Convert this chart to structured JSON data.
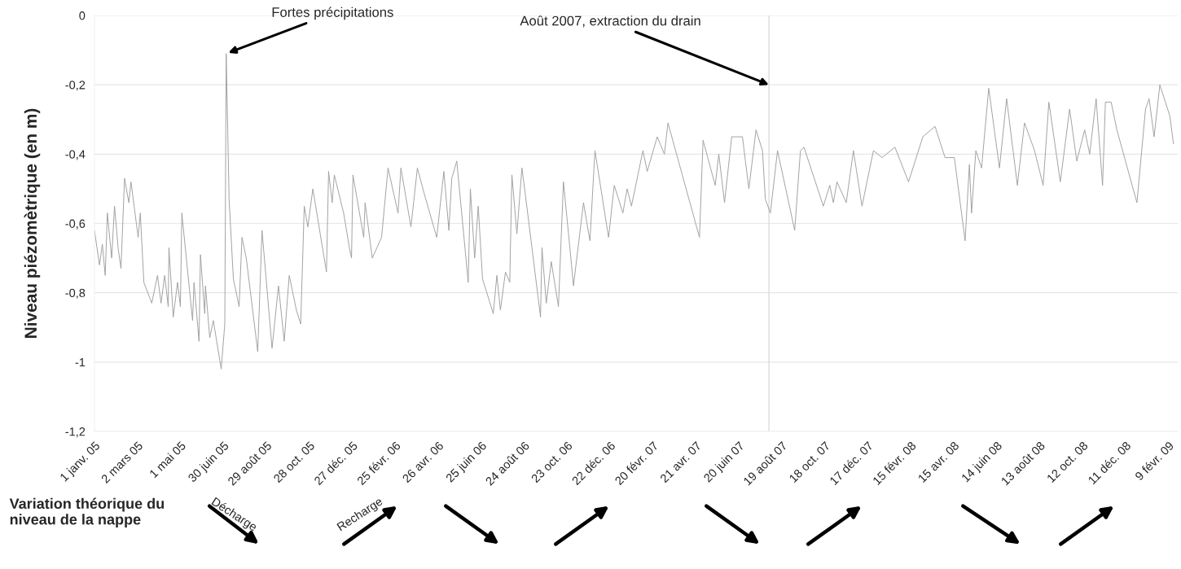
{
  "chart_data": {
    "type": "line",
    "ylabel": "Niveau piézomètrique (en m)",
    "x": [
      "2005-01-01",
      "2005-01-08",
      "2005-01-12",
      "2005-01-16",
      "2005-01-19",
      "2005-01-25",
      "2005-01-29",
      "2005-02-03",
      "2005-02-07",
      "2005-02-12",
      "2005-02-18",
      "2005-02-21",
      "2005-03-03",
      "2005-03-06",
      "2005-03-11",
      "2005-03-22",
      "2005-03-30",
      "2005-04-04",
      "2005-04-09",
      "2005-04-14",
      "2005-04-15",
      "2005-04-21",
      "2005-04-27",
      "2005-05-01",
      "2005-05-03",
      "2005-05-18",
      "2005-05-20",
      "2005-05-27",
      "2005-05-29",
      "2005-06-04",
      "2005-06-05",
      "2005-06-11",
      "2005-06-16",
      "2005-06-27",
      "2005-07-02",
      "2005-07-04",
      "2005-07-08",
      "2005-07-14",
      "2005-07-22",
      "2005-07-26",
      "2005-08-01",
      "2005-08-17",
      "2005-08-23",
      "2005-09-06",
      "2005-09-15",
      "2005-09-23",
      "2005-09-30",
      "2005-10-10",
      "2005-10-16",
      "2005-10-21",
      "2005-10-26",
      "2005-11-02",
      "2005-11-21",
      "2005-11-24",
      "2005-11-29",
      "2005-12-02",
      "2005-12-15",
      "2005-12-23",
      "2005-12-26",
      "2005-12-28",
      "2006-01-12",
      "2006-01-14",
      "2006-01-24",
      "2006-02-06",
      "2006-02-15",
      "2006-03-01",
      "2006-03-05",
      "2006-03-19",
      "2006-03-28",
      "2006-04-06",
      "2006-04-24",
      "2006-05-04",
      "2006-05-11",
      "2006-05-15",
      "2006-05-22",
      "2006-06-07",
      "2006-06-10",
      "2006-06-16",
      "2006-06-21",
      "2006-06-27",
      "2006-07-12",
      "2006-07-17",
      "2006-07-22",
      "2006-07-29",
      "2006-08-04",
      "2006-08-07",
      "2006-08-14",
      "2006-08-21",
      "2006-08-26",
      "2006-09-16",
      "2006-09-18",
      "2006-09-24",
      "2006-10-01",
      "2006-10-11",
      "2006-10-18",
      "2006-10-27",
      "2006-11-01",
      "2006-11-15",
      "2006-11-24",
      "2006-12-01",
      "2006-12-20",
      "2006-12-28",
      "2007-01-09",
      "2007-01-15",
      "2007-01-21",
      "2007-02-06",
      "2007-02-12",
      "2007-02-26",
      "2007-03-08",
      "2007-03-13",
      "2007-04-26",
      "2007-05-01",
      "2007-05-18",
      "2007-05-23",
      "2007-05-31",
      "2007-06-10",
      "2007-06-25",
      "2007-07-04",
      "2007-07-14",
      "2007-07-23",
      "2007-07-27",
      "2007-08-03",
      "2007-08-13",
      "2007-09-06",
      "2007-09-14",
      "2007-09-19",
      "2007-10-16",
      "2007-10-25",
      "2007-10-30",
      "2007-11-04",
      "2007-11-17",
      "2007-11-27",
      "2007-12-09",
      "2007-12-25",
      "2008-01-06",
      "2008-01-24",
      "2008-02-12",
      "2008-03-03",
      "2008-03-20",
      "2008-04-03",
      "2008-04-16",
      "2008-05-01",
      "2008-05-07",
      "2008-05-10",
      "2008-05-16",
      "2008-05-24",
      "2008-06-03",
      "2008-06-18",
      "2008-06-28",
      "2008-07-13",
      "2008-07-23",
      "2008-08-06",
      "2008-08-18",
      "2008-08-26",
      "2008-09-11",
      "2008-09-24",
      "2008-10-04",
      "2008-10-15",
      "2008-10-22",
      "2008-10-31",
      "2008-11-09",
      "2008-11-13",
      "2008-11-21",
      "2008-11-29",
      "2008-12-27",
      "2009-01-08",
      "2009-01-13",
      "2009-01-20",
      "2009-01-28",
      "2009-02-11",
      "2009-02-16"
    ],
    "series": [
      {
        "color": "#a0a0a0",
        "values": [
          -0.62,
          -0.72,
          -0.66,
          -0.75,
          -0.57,
          -0.7,
          -0.55,
          -0.67,
          -0.73,
          -0.47,
          -0.54,
          -0.48,
          -0.64,
          -0.57,
          -0.77,
          -0.83,
          -0.75,
          -0.83,
          -0.75,
          -0.84,
          -0.67,
          -0.87,
          -0.77,
          -0.84,
          -0.57,
          -0.88,
          -0.77,
          -0.94,
          -0.69,
          -0.86,
          -0.78,
          -0.93,
          -0.88,
          -1.02,
          -0.89,
          -0.11,
          -0.53,
          -0.76,
          -0.84,
          -0.64,
          -0.7,
          -0.97,
          -0.62,
          -0.96,
          -0.78,
          -0.94,
          -0.75,
          -0.85,
          -0.89,
          -0.55,
          -0.61,
          -0.5,
          -0.74,
          -0.45,
          -0.54,
          -0.46,
          -0.57,
          -0.67,
          -0.7,
          -0.46,
          -0.64,
          -0.54,
          -0.7,
          -0.64,
          -0.44,
          -0.57,
          -0.44,
          -0.61,
          -0.44,
          -0.51,
          -0.64,
          -0.45,
          -0.62,
          -0.47,
          -0.42,
          -0.77,
          -0.5,
          -0.7,
          -0.55,
          -0.76,
          -0.86,
          -0.75,
          -0.85,
          -0.74,
          -0.77,
          -0.46,
          -0.63,
          -0.44,
          -0.52,
          -0.87,
          -0.67,
          -0.83,
          -0.71,
          -0.84,
          -0.48,
          -0.67,
          -0.78,
          -0.54,
          -0.65,
          -0.39,
          -0.64,
          -0.49,
          -0.57,
          -0.5,
          -0.55,
          -0.39,
          -0.45,
          -0.35,
          -0.4,
          -0.31,
          -0.64,
          -0.36,
          -0.49,
          -0.4,
          -0.54,
          -0.35,
          -0.35,
          -0.5,
          -0.33,
          -0.39,
          -0.53,
          -0.57,
          -0.39,
          -0.62,
          -0.39,
          -0.38,
          -0.55,
          -0.49,
          -0.54,
          -0.48,
          -0.54,
          -0.39,
          -0.55,
          -0.39,
          -0.41,
          -0.38,
          -0.48,
          -0.35,
          -0.32,
          -0.41,
          -0.41,
          -0.65,
          -0.43,
          -0.57,
          -0.39,
          -0.44,
          -0.21,
          -0.44,
          -0.24,
          -0.49,
          -0.31,
          -0.39,
          -0.49,
          -0.25,
          -0.48,
          -0.27,
          -0.42,
          -0.33,
          -0.4,
          -0.24,
          -0.49,
          -0.25,
          -0.25,
          -0.33,
          -0.54,
          -0.27,
          -0.24,
          -0.35,
          -0.2,
          -0.29,
          -0.37
        ]
      }
    ],
    "xlim": [
      "2005-01-01",
      "2009-02-22"
    ],
    "xticks": [
      {
        "value": "2005-01-01",
        "label": "1 janv. 05"
      },
      {
        "value": "2005-03-02",
        "label": "2 mars 05"
      },
      {
        "value": "2005-05-01",
        "label": "1 mai 05"
      },
      {
        "value": "2005-06-30",
        "label": "30 juin 05"
      },
      {
        "value": "2005-08-29",
        "label": "29 août 05"
      },
      {
        "value": "2005-10-28",
        "label": "28 oct. 05"
      },
      {
        "value": "2005-12-27",
        "label": "27 déc. 05"
      },
      {
        "value": "2006-02-25",
        "label": "25 févr. 06"
      },
      {
        "value": "2006-04-26",
        "label": "26 avr. 06"
      },
      {
        "value": "2006-06-25",
        "label": "25 juin 06"
      },
      {
        "value": "2006-08-24",
        "label": "24 août 06"
      },
      {
        "value": "2006-10-23",
        "label": "23 oct. 06"
      },
      {
        "value": "2006-12-22",
        "label": "22 déc. 06"
      },
      {
        "value": "2007-02-20",
        "label": "20 févr. 07"
      },
      {
        "value": "2007-04-21",
        "label": "21 avr. 07"
      },
      {
        "value": "2007-06-20",
        "label": "20 juin 07"
      },
      {
        "value": "2007-08-19",
        "label": "19 août 07"
      },
      {
        "value": "2007-10-18",
        "label": "18 oct. 07"
      },
      {
        "value": "2007-12-17",
        "label": "17 déc. 07"
      },
      {
        "value": "2008-02-15",
        "label": "15 févr. 08"
      },
      {
        "value": "2008-04-15",
        "label": "15 avr. 08"
      },
      {
        "value": "2008-06-14",
        "label": "14 juin 08"
      },
      {
        "value": "2008-08-13",
        "label": "13 août 08"
      },
      {
        "value": "2008-10-12",
        "label": "12 oct. 08"
      },
      {
        "value": "2008-12-11",
        "label": "11 déc. 08"
      },
      {
        "value": "2009-02-09",
        "label": "9 févr. 09"
      }
    ],
    "ylim": [
      -1.2,
      0
    ],
    "yticks": [
      {
        "value": -1.2,
        "label": "-1,2"
      },
      {
        "value": -1,
        "label": "-1"
      },
      {
        "value": -0.8,
        "label": "-0,8"
      },
      {
        "value": -0.6,
        "label": "-0,6"
      },
      {
        "value": -0.4,
        "label": "-0,4"
      },
      {
        "value": -0.2,
        "label": "-0,2"
      },
      0
    ],
    "grid": "y",
    "marker": "none",
    "line_style": "solid",
    "ref_lines": [
      {
        "axis": "x",
        "value": "2007-08-01",
        "label": "Août 2007, extraction du drain",
        "color": "#d8d8d8"
      }
    ],
    "annotations": [
      {
        "text": "Fortes précipitations",
        "x": "2005-07-04",
        "y": -0.11
      },
      "Variation théorique du niveau de la nappe",
      "Décharge",
      "Recharge"
    ]
  }
}
